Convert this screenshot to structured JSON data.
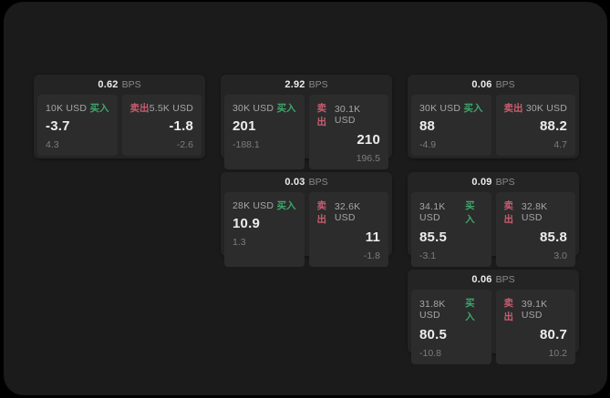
{
  "labels": {
    "bps": "BPS",
    "buy": "买入",
    "sell": "卖出"
  },
  "colors": {
    "page_bg": "#000000",
    "container_bg": "#1b1b1b",
    "card_bg": "#242424",
    "panel_bg": "#2c2c2c",
    "buy_green": "#3fa56b",
    "sell_red": "#c75d6f"
  },
  "cards": [
    {
      "col": 1,
      "row": 1,
      "bps": "0.62",
      "buy": {
        "amount": "10K USD",
        "price": "-3.7",
        "delta": "4.3"
      },
      "sell": {
        "amount": "5.5K USD",
        "price": "-1.8",
        "delta": "-2.6"
      }
    },
    {
      "col": 2,
      "row": 1,
      "bps": "2.92",
      "buy": {
        "amount": "30K USD",
        "price": "201",
        "delta": "-188.1"
      },
      "sell": {
        "amount": "30.1K USD",
        "price": "210",
        "delta": "196.5"
      }
    },
    {
      "col": 3,
      "row": 1,
      "bps": "0.06",
      "buy": {
        "amount": "30K USD",
        "price": "88",
        "delta": "-4.9"
      },
      "sell": {
        "amount": "30K USD",
        "price": "88.2",
        "delta": "4.7"
      }
    },
    {
      "col": 2,
      "row": 2,
      "bps": "0.03",
      "buy": {
        "amount": "28K USD",
        "price": "10.9",
        "delta": "1.3"
      },
      "sell": {
        "amount": "32.6K USD",
        "price": "11",
        "delta": "-1.8"
      }
    },
    {
      "col": 3,
      "row": 2,
      "bps": "0.09",
      "buy": {
        "amount": "34.1K USD",
        "price": "85.5",
        "delta": "-3.1"
      },
      "sell": {
        "amount": "32.8K USD",
        "price": "85.8",
        "delta": "3.0"
      }
    },
    {
      "col": 3,
      "row": 3,
      "bps": "0.06",
      "buy": {
        "amount": "31.8K USD",
        "price": "80.5",
        "delta": "-10.8"
      },
      "sell": {
        "amount": "39.1K USD",
        "price": "80.7",
        "delta": "10.2"
      }
    }
  ]
}
